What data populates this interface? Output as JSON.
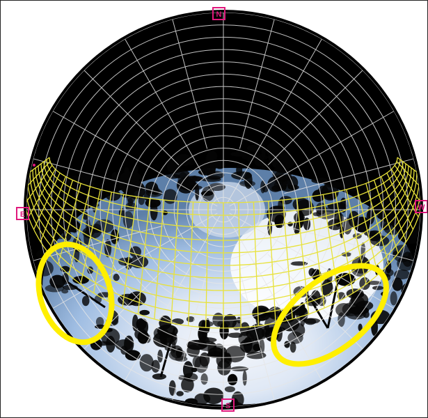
{
  "compass": {
    "north": "N",
    "east": "E",
    "south": "S",
    "west": "W"
  },
  "colors": {
    "frame_bg": "#ffffff",
    "sky_outer": "#000000",
    "sky_blue": "#8fb3dd",
    "sun_path_grid": "#e8e23a",
    "polar_grid": "#e6e6e6",
    "compass_marker": "#e0187c",
    "highlight_ellipse": "#ffef00"
  },
  "icons": {
    "compass_marker": "pink-square-marker",
    "highlight": "yellow-ellipse-outline"
  }
}
